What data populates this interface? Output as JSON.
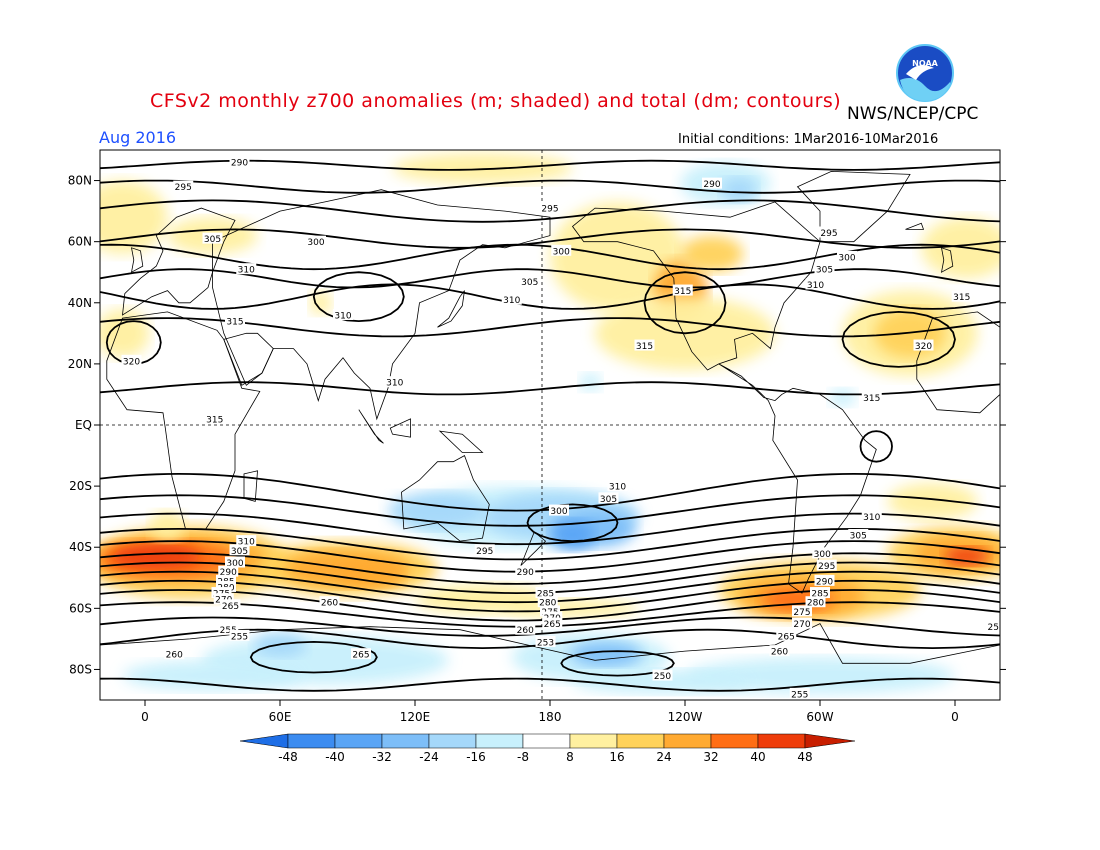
{
  "header": {
    "title": "CFSv2 monthly z700 anomalies (m; shaded) and total (dm; contours)",
    "agency": "NWS/NCEP/CPC",
    "valid_month": "Aug 2016",
    "initial_conditions": "Initial conditions: 1Mar2016-10Mar2016",
    "logo_text": "NOAA"
  },
  "axes": {
    "lat_labels": [
      "80N",
      "60N",
      "40N",
      "20N",
      "EQ",
      "20S",
      "40S",
      "60S",
      "80S"
    ],
    "lat_values": [
      80,
      60,
      40,
      20,
      0,
      -20,
      -40,
      -60,
      -80
    ],
    "lon_labels": [
      "0",
      "60E",
      "120E",
      "180",
      "120W",
      "60W",
      "0"
    ],
    "lon_values": [
      0,
      60,
      120,
      180,
      240,
      300,
      360
    ],
    "lon_range": [
      -20,
      380
    ],
    "lat_range": [
      -90,
      90
    ]
  },
  "colorbar": {
    "labels": [
      "-48",
      "-40",
      "-32",
      "-24",
      "-16",
      "-8",
      "8",
      "16",
      "24",
      "32",
      "40",
      "48"
    ],
    "colors": [
      "#1e6ee6",
      "#3c8cf0",
      "#5aa5f5",
      "#7dbef8",
      "#a5d8fa",
      "#c8f0fc",
      "#ffffff",
      "#fff0a0",
      "#ffd25a",
      "#ffaa32",
      "#ff6e14",
      "#ee3c0a",
      "#c81e00"
    ]
  },
  "contour_labels": [
    {
      "text": "290",
      "lon": 42,
      "lat": 86
    },
    {
      "text": "295",
      "lon": 17,
      "lat": 78
    },
    {
      "text": "290",
      "lon": 252,
      "lat": 79
    },
    {
      "text": "295",
      "lon": 180,
      "lat": 71
    },
    {
      "text": "295",
      "lon": 304,
      "lat": 63
    },
    {
      "text": "305",
      "lon": 30,
      "lat": 61
    },
    {
      "text": "300",
      "lon": 76,
      "lat": 60
    },
    {
      "text": "300",
      "lon": 185,
      "lat": 57
    },
    {
      "text": "300",
      "lon": 312,
      "lat": 55
    },
    {
      "text": "310",
      "lon": 45,
      "lat": 51
    },
    {
      "text": "305",
      "lon": 171,
      "lat": 47
    },
    {
      "text": "305",
      "lon": 302,
      "lat": 51
    },
    {
      "text": "310",
      "lon": 163,
      "lat": 41
    },
    {
      "text": "315",
      "lon": 239,
      "lat": 44
    },
    {
      "text": "310",
      "lon": 298,
      "lat": 46
    },
    {
      "text": "315",
      "lon": 363,
      "lat": 42
    },
    {
      "text": "310",
      "lon": 88,
      "lat": 36
    },
    {
      "text": "315",
      "lon": 40,
      "lat": 34
    },
    {
      "text": "320",
      "lon": 346,
      "lat": 26
    },
    {
      "text": "315",
      "lon": 222,
      "lat": 26
    },
    {
      "text": "320",
      "lon": -6,
      "lat": 21
    },
    {
      "text": "310",
      "lon": 111,
      "lat": 14
    },
    {
      "text": "315",
      "lon": 323,
      "lat": 9
    },
    {
      "text": "315",
      "lon": 31,
      "lat": 2
    },
    {
      "text": "310",
      "lon": 210,
      "lat": -20
    },
    {
      "text": "305",
      "lon": 206,
      "lat": -24
    },
    {
      "text": "300",
      "lon": 184,
      "lat": -28
    },
    {
      "text": "310",
      "lon": 323,
      "lat": -30
    },
    {
      "text": "305",
      "lon": 317,
      "lat": -36
    },
    {
      "text": "310",
      "lon": 45,
      "lat": -38
    },
    {
      "text": "305",
      "lon": 42,
      "lat": -41
    },
    {
      "text": "300",
      "lon": 40,
      "lat": -45
    },
    {
      "text": "295",
      "lon": 151,
      "lat": -41
    },
    {
      "text": "300",
      "lon": 301,
      "lat": -42
    },
    {
      "text": "295",
      "lon": 303,
      "lat": -46
    },
    {
      "text": "290",
      "lon": 37,
      "lat": -48
    },
    {
      "text": "285",
      "lon": 36,
      "lat": -51
    },
    {
      "text": "280",
      "lon": 36,
      "lat": -53
    },
    {
      "text": "275",
      "lon": 34,
      "lat": -55
    },
    {
      "text": "270",
      "lon": 35,
      "lat": -57
    },
    {
      "text": "265",
      "lon": 38,
      "lat": -59
    },
    {
      "text": "290",
      "lon": 169,
      "lat": -48
    },
    {
      "text": "290",
      "lon": 302,
      "lat": -51
    },
    {
      "text": "285",
      "lon": 300,
      "lat": -55
    },
    {
      "text": "280",
      "lon": 298,
      "lat": -58
    },
    {
      "text": "260",
      "lon": 82,
      "lat": -58
    },
    {
      "text": "285",
      "lon": 178,
      "lat": -55
    },
    {
      "text": "280",
      "lon": 179,
      "lat": -58
    },
    {
      "text": "275",
      "lon": 180,
      "lat": -61
    },
    {
      "text": "270",
      "lon": 181,
      "lat": -63
    },
    {
      "text": "265",
      "lon": 181,
      "lat": -65
    },
    {
      "text": "275",
      "lon": 292,
      "lat": -61
    },
    {
      "text": "270",
      "lon": 292,
      "lat": -65
    },
    {
      "text": "260",
      "lon": 169,
      "lat": -67
    },
    {
      "text": "265",
      "lon": 285,
      "lat": -69
    },
    {
      "text": "255",
      "lon": 37,
      "lat": -67
    },
    {
      "text": "255",
      "lon": 42,
      "lat": -69
    },
    {
      "text": "253",
      "lon": 178,
      "lat": -71
    },
    {
      "text": "260",
      "lon": 282,
      "lat": -74
    },
    {
      "text": "260",
      "lon": 13,
      "lat": -75
    },
    {
      "text": "265",
      "lon": 96,
      "lat": -75
    },
    {
      "text": "250",
      "lon": 230,
      "lat": -82
    },
    {
      "text": "255",
      "lon": 291,
      "lat": -88
    },
    {
      "text": "25",
      "lon": 377,
      "lat": -66
    }
  ]
}
